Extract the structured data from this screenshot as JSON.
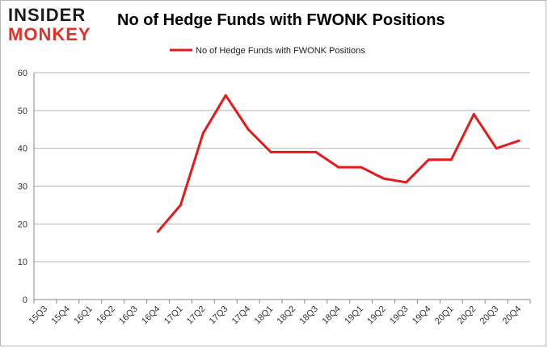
{
  "logo": {
    "line1": "INSIDER",
    "line2": "MONKEY"
  },
  "colors": {
    "series": "#e8191a",
    "grid": "#b5b5b5",
    "axis": "#888888",
    "logo_accent": "#e0312b"
  },
  "chart_data": {
    "type": "line",
    "title": "No of Hedge Funds with FWONK Positions",
    "xlabel": "",
    "ylabel": "",
    "ylim": [
      0,
      60
    ],
    "yticks": [
      0,
      10,
      20,
      30,
      40,
      50,
      60
    ],
    "grid": true,
    "legend_placement": "top-center",
    "categories": [
      "15Q3",
      "15Q4",
      "16Q1",
      "16Q2",
      "16Q3",
      "16Q4",
      "17Q1",
      "17Q2",
      "17Q3",
      "17Q4",
      "18Q1",
      "18Q2",
      "18Q3",
      "18Q4",
      "19Q1",
      "19Q2",
      "19Q3",
      "19Q4",
      "20Q1",
      "20Q2",
      "20Q3",
      "20Q4"
    ],
    "series": [
      {
        "name": "No of Hedge Funds with FWONK Positions",
        "values": [
          null,
          null,
          null,
          null,
          null,
          18,
          25,
          44,
          54,
          45,
          39,
          39,
          39,
          35,
          35,
          32,
          31,
          37,
          37,
          49,
          40,
          42
        ]
      }
    ]
  }
}
